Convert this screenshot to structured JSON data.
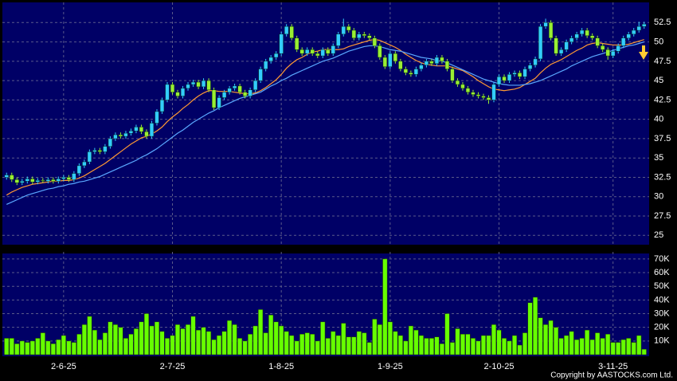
{
  "chart_data": [
    {
      "type": "candlestick",
      "categories": [
        null,
        null,
        null,
        null,
        null,
        null,
        null,
        null,
        null,
        null,
        null,
        "2-6-25",
        null,
        null,
        null,
        null,
        null,
        null,
        null,
        null,
        null,
        null,
        null,
        null,
        null,
        null,
        null,
        null,
        null,
        null,
        null,
        null,
        "2-7-25",
        null,
        null,
        null,
        null,
        null,
        null,
        null,
        null,
        null,
        null,
        null,
        null,
        null,
        null,
        null,
        null,
        null,
        null,
        null,
        null,
        "1-8-25",
        null,
        null,
        null,
        null,
        null,
        null,
        null,
        null,
        null,
        null,
        null,
        null,
        null,
        null,
        null,
        null,
        null,
        null,
        null,
        null,
        "1-9-25",
        null,
        null,
        null,
        null,
        null,
        null,
        null,
        null,
        null,
        null,
        null,
        null,
        null,
        null,
        null,
        null,
        null,
        null,
        null,
        null,
        "2-10-25",
        null,
        null,
        null,
        null,
        null,
        null,
        null,
        null,
        null,
        null,
        null,
        null,
        null,
        null,
        null,
        null,
        null,
        null,
        null,
        null,
        null,
        "3-11-25",
        null,
        null,
        null,
        null,
        null,
        null
      ],
      "open": [
        32.5,
        32.8,
        32.2,
        31.8,
        32.0,
        32.3,
        31.9,
        32.1,
        32.0,
        32.2,
        32.0,
        32.3,
        32.5,
        32.2,
        33.0,
        34.0,
        34.5,
        35.8,
        36.0,
        35.8,
        36.5,
        37.5,
        38.0,
        37.8,
        38.2,
        38.5,
        39.0,
        38.4,
        37.8,
        39.5,
        41.0,
        42.5,
        44.5,
        43.5,
        43.0,
        44.0,
        44.5,
        44.8,
        44.2,
        45.0,
        43.8,
        41.5,
        42.8,
        43.5,
        44.0,
        44.3,
        43.5,
        43.0,
        43.8,
        45.0,
        46.5,
        47.5,
        48.0,
        48.5,
        51.0,
        52.0,
        50.5,
        49.0,
        48.5,
        49.0,
        48.5,
        48.2,
        49.0,
        48.5,
        49.5,
        51.0,
        52.0,
        51.5,
        50.5,
        51.0,
        50.8,
        50.5,
        49.5,
        48.0,
        46.8,
        48.5,
        47.5,
        46.5,
        46.0,
        45.8,
        46.5,
        47.0,
        47.5,
        47.2,
        48.0,
        47.5,
        46.5,
        45.0,
        44.5,
        44.0,
        43.5,
        43.2,
        43.0,
        42.8,
        42.5,
        44.5,
        45.5,
        45.0,
        45.8,
        46.0,
        45.5,
        46.5,
        47.0,
        47.8,
        52.0,
        52.5,
        50.5,
        48.5,
        49.0,
        50.0,
        50.5,
        51.0,
        51.5,
        50.8,
        50.5,
        49.5,
        49.0,
        48.2,
        48.8,
        49.5,
        50.5,
        51.0,
        51.5,
        52.0
      ],
      "high": [
        33.1,
        33.1,
        32.5,
        32.3,
        32.6,
        32.6,
        32.4,
        32.4,
        32.5,
        32.5,
        32.6,
        32.8,
        32.8,
        33.3,
        34.3,
        34.8,
        36.1,
        36.3,
        36.3,
        36.8,
        37.8,
        38.3,
        38.3,
        38.5,
        38.8,
        39.3,
        39.3,
        38.7,
        39.8,
        41.3,
        42.8,
        44.8,
        44.8,
        43.8,
        44.3,
        44.8,
        45.1,
        45.1,
        45.3,
        45.3,
        44.1,
        43.1,
        43.8,
        44.3,
        44.6,
        44.6,
        43.8,
        44.1,
        45.3,
        46.8,
        47.8,
        48.3,
        48.8,
        51.3,
        52.3,
        52.3,
        50.8,
        49.3,
        49.3,
        49.3,
        48.8,
        49.3,
        49.3,
        49.8,
        51.3,
        53.0,
        52.3,
        51.8,
        51.3,
        51.3,
        51.1,
        50.8,
        49.8,
        48.3,
        48.8,
        48.8,
        47.8,
        46.8,
        46.3,
        46.8,
        47.3,
        47.8,
        47.8,
        48.3,
        48.3,
        47.8,
        46.8,
        45.3,
        44.8,
        44.3,
        43.8,
        43.5,
        43.3,
        43.1,
        44.8,
        45.8,
        45.8,
        46.1,
        46.3,
        46.3,
        46.8,
        47.3,
        48.1,
        52.3,
        53.0,
        52.8,
        50.8,
        49.3,
        50.3,
        50.8,
        51.3,
        51.8,
        51.8,
        51.1,
        50.8,
        49.8,
        49.3,
        49.1,
        49.8,
        50.8,
        51.3,
        51.8,
        52.6,
        52.6
      ],
      "low": [
        32.2,
        31.9,
        31.5,
        31.5,
        31.7,
        31.6,
        31.6,
        31.8,
        31.7,
        31.7,
        31.7,
        32.0,
        31.9,
        31.9,
        32.7,
        33.7,
        34.2,
        35.5,
        35.5,
        35.5,
        36.2,
        37.2,
        37.5,
        37.5,
        37.9,
        38.2,
        38.1,
        37.5,
        37.5,
        39.2,
        40.7,
        42.2,
        43.2,
        42.7,
        42.7,
        43.7,
        44.2,
        43.9,
        43.9,
        43.5,
        41.2,
        41.2,
        42.5,
        43.2,
        43.7,
        43.2,
        42.7,
        42.7,
        43.5,
        44.7,
        46.2,
        47.2,
        47.7,
        48.2,
        50.7,
        50.2,
        48.7,
        48.2,
        48.2,
        48.2,
        47.9,
        47.9,
        48.2,
        48.2,
        49.2,
        50.7,
        51.2,
        50.2,
        50.2,
        50.5,
        50.2,
        49.2,
        47.7,
        46.5,
        46.5,
        47.2,
        46.2,
        45.7,
        45.5,
        45.5,
        46.2,
        46.7,
        46.9,
        46.9,
        47.2,
        46.2,
        44.7,
        44.2,
        43.7,
        43.2,
        42.9,
        42.7,
        42.5,
        42.0,
        42.2,
        44.2,
        44.7,
        44.7,
        45.5,
        45.2,
        45.2,
        46.2,
        46.7,
        47.5,
        51.7,
        50.2,
        48.2,
        48.2,
        48.7,
        49.7,
        50.2,
        50.7,
        50.5,
        50.2,
        49.2,
        48.7,
        47.7,
        47.9,
        48.5,
        49.2,
        50.2,
        50.7,
        51.2,
        51.7
      ],
      "close": [
        32.8,
        32.2,
        31.8,
        32.0,
        32.3,
        31.9,
        32.1,
        32.0,
        32.2,
        32.0,
        32.3,
        32.5,
        32.2,
        33.0,
        34.0,
        34.5,
        35.8,
        36.0,
        35.8,
        36.5,
        37.5,
        38.0,
        37.8,
        38.2,
        38.5,
        39.0,
        38.4,
        37.8,
        39.5,
        41.0,
        42.5,
        44.5,
        43.5,
        43.0,
        44.0,
        44.5,
        44.8,
        44.2,
        45.0,
        43.8,
        41.5,
        42.8,
        43.5,
        44.0,
        44.3,
        43.5,
        43.0,
        43.8,
        45.0,
        46.5,
        47.5,
        48.0,
        48.5,
        51.0,
        52.0,
        50.5,
        49.0,
        48.5,
        49.0,
        48.5,
        48.2,
        49.0,
        48.5,
        49.5,
        51.0,
        52.0,
        51.5,
        50.5,
        51.0,
        50.8,
        50.5,
        49.5,
        48.0,
        46.8,
        48.5,
        47.5,
        46.5,
        46.0,
        45.8,
        46.5,
        47.0,
        47.5,
        47.2,
        48.0,
        47.5,
        46.5,
        45.0,
        44.5,
        44.0,
        43.5,
        43.2,
        43.0,
        42.8,
        42.5,
        44.5,
        45.5,
        45.0,
        45.8,
        46.0,
        45.5,
        46.5,
        47.0,
        47.8,
        52.0,
        52.5,
        50.5,
        48.5,
        49.0,
        50.0,
        50.5,
        51.0,
        51.5,
        50.8,
        50.5,
        49.5,
        49.0,
        48.2,
        48.8,
        49.5,
        50.5,
        51.0,
        51.5,
        52.0,
        52.3
      ],
      "series": [
        {
          "color": "#ff9933",
          "values": [
            30.2,
            30.6,
            30.9,
            31.2,
            31.4,
            31.6,
            31.7,
            31.8,
            31.9,
            32.0,
            32.0,
            32.1,
            32.1,
            32.2,
            32.4,
            32.7,
            33.1,
            33.5,
            33.9,
            34.3,
            34.8,
            35.3,
            35.8,
            36.3,
            36.8,
            37.2,
            37.6,
            37.8,
            38.1,
            38.5,
            39.0,
            39.7,
            40.3,
            40.8,
            41.4,
            41.9,
            42.5,
            43.0,
            43.4,
            43.7,
            43.7,
            43.6,
            43.6,
            43.6,
            43.5,
            43.4,
            43.3,
            43.3,
            43.4,
            43.7,
            44.1,
            44.6,
            45.1,
            45.8,
            46.6,
            47.2,
            47.7,
            48.0,
            48.4,
            48.7,
            48.8,
            49.0,
            49.0,
            49.0,
            49.0,
            49.1,
            49.4,
            49.6,
            49.8,
            50.0,
            50.2,
            50.3,
            50.2,
            49.9,
            49.6,
            49.3,
            48.9,
            48.4,
            48.0,
            47.6,
            47.3,
            47.1,
            47.0,
            46.9,
            46.9,
            46.9,
            46.7,
            46.5,
            46.3,
            45.9,
            45.5,
            45.0,
            44.6,
            44.2,
            43.9,
            43.8,
            43.7,
            43.8,
            43.9,
            44.1,
            44.5,
            44.9,
            45.3,
            46.0,
            46.6,
            47.1,
            47.4,
            47.7,
            48.1,
            48.5,
            48.9,
            49.2,
            49.6,
            49.8,
            49.9,
            49.8,
            49.7,
            49.6,
            49.6,
            49.6,
            49.7,
            49.9,
            50.1,
            50.3
          ]
        },
        {
          "color": "#5aa8ff",
          "values": [
            29.0,
            29.3,
            29.6,
            29.9,
            30.2,
            30.4,
            30.6,
            30.8,
            31.0,
            31.1,
            31.3,
            31.4,
            31.6,
            31.7,
            31.9,
            32.0,
            32.2,
            32.4,
            32.6,
            32.9,
            33.2,
            33.5,
            33.8,
            34.1,
            34.4,
            34.7,
            35.1,
            35.4,
            35.8,
            36.2,
            36.7,
            37.2,
            37.7,
            38.2,
            38.6,
            39.1,
            39.6,
            40.0,
            40.4,
            40.8,
            41.1,
            41.5,
            41.8,
            42.1,
            42.4,
            42.7,
            42.9,
            43.1,
            43.3,
            43.5,
            43.9,
            44.3,
            44.6,
            45.0,
            45.3,
            45.7,
            46.0,
            46.3,
            46.6,
            46.9,
            47.2,
            47.5,
            47.7,
            47.9,
            48.2,
            48.5,
            48.8,
            49.0,
            49.2,
            49.4,
            49.5,
            49.5,
            49.4,
            49.2,
            49.0,
            48.9,
            48.8,
            48.6,
            48.4,
            48.2,
            48.0,
            47.9,
            47.8,
            47.6,
            47.5,
            47.3,
            47.0,
            46.7,
            46.4,
            46.1,
            45.8,
            45.5,
            45.2,
            45.0,
            44.8,
            44.6,
            44.5,
            44.4,
            44.4,
            44.4,
            44.5,
            44.6,
            44.8,
            45.0,
            45.3,
            45.6,
            45.9,
            46.2,
            46.5,
            46.9,
            47.2,
            47.5,
            47.8,
            48.1,
            48.3,
            48.5,
            48.7,
            48.9,
            49.1,
            49.3,
            49.5,
            49.6,
            49.8,
            50.0
          ]
        }
      ],
      "up_color": "#33ccff",
      "down_color": "#99ee33",
      "ylim": [
        24,
        54.9
      ],
      "yticks": [
        25,
        27.5,
        30,
        32.5,
        35,
        37.5,
        40,
        42.5,
        45,
        47.5,
        50,
        52.5
      ],
      "grid": true
    },
    {
      "type": "bar",
      "values": [
        12000,
        12000,
        8000,
        10000,
        9000,
        10000,
        12000,
        16000,
        10000,
        8000,
        11000,
        14000,
        10000,
        9000,
        15000,
        22000,
        28000,
        18000,
        11000,
        16000,
        24000,
        22000,
        20000,
        12000,
        15000,
        19000,
        24000,
        30000,
        21000,
        24000,
        17000,
        12000,
        14000,
        22000,
        19000,
        22000,
        28000,
        18000,
        20000,
        17000,
        11000,
        14000,
        17000,
        25000,
        22000,
        12000,
        10000,
        15000,
        21000,
        33000,
        16000,
        29000,
        24000,
        21000,
        17000,
        14000,
        10000,
        15000,
        16000,
        15000,
        10000,
        24000,
        12000,
        17000,
        14000,
        23000,
        13000,
        13000,
        17000,
        16000,
        9000,
        26000,
        22000,
        70000,
        24000,
        17000,
        14000,
        10000,
        21000,
        18000,
        14000,
        12000,
        12000,
        13000,
        8000,
        30000,
        9000,
        19000,
        15000,
        15000,
        12000,
        10000,
        14000,
        14000,
        22000,
        18000,
        12000,
        10000,
        14000,
        7000,
        16000,
        38000,
        42000,
        27000,
        22000,
        25000,
        20000,
        12000,
        14000,
        17000,
        11000,
        12000,
        18000,
        11000,
        16000,
        12000,
        15000,
        9000,
        9000,
        11000,
        12000,
        9000,
        14000,
        4000
      ],
      "color": "#66ff00",
      "ylim": [
        0,
        74000
      ],
      "yticks": [
        {
          "value": 10000,
          "label": "10K"
        },
        {
          "value": 20000,
          "label": "20K"
        },
        {
          "value": 30000,
          "label": "30K"
        },
        {
          "value": 40000,
          "label": "40K"
        },
        {
          "value": 50000,
          "label": "50K"
        },
        {
          "value": 60000,
          "label": "60K"
        },
        {
          "value": 70000,
          "label": "70K"
        }
      ],
      "grid": true
    }
  ],
  "copyright": "Copyright by AASTOCKS.com Ltd."
}
